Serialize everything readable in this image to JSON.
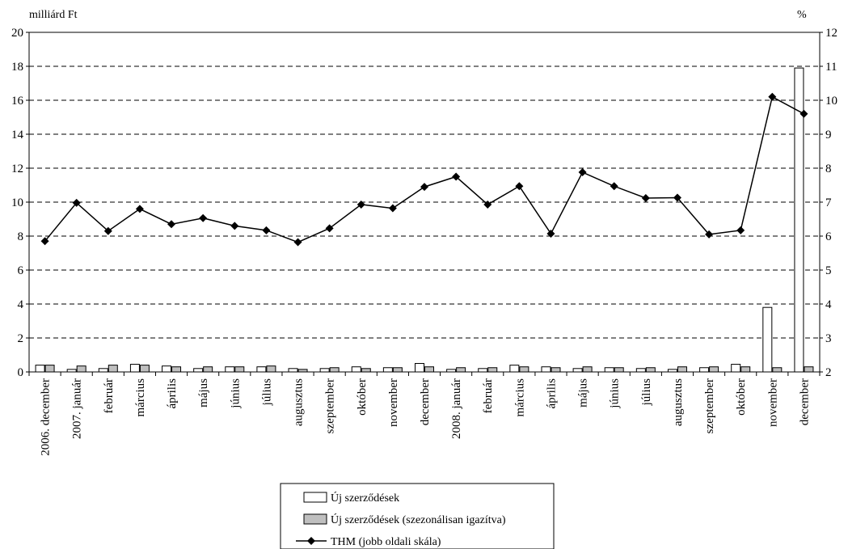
{
  "chart_data": {
    "type": "bar",
    "y_left_label": "milliárd Ft",
    "y_right_label": "%",
    "y_left_range": [
      0,
      20
    ],
    "y_left_ticks": [
      "0",
      "2",
      "4",
      "6",
      "8",
      "10",
      "12",
      "14",
      "16",
      "18",
      "20"
    ],
    "y_right_range": [
      2,
      12
    ],
    "y_right_ticks": [
      "2",
      "3",
      "4",
      "5",
      "6",
      "7",
      "8",
      "9",
      "10",
      "11",
      "12"
    ],
    "grid": "horizontal dashed",
    "legend_position": "bottom",
    "categories": [
      "2006. december",
      "2007. január",
      "február",
      "március",
      "április",
      "május",
      "június",
      "július",
      "augusztus",
      "szeptember",
      "október",
      "november",
      "december",
      "2008. január",
      "február",
      "március",
      "április",
      "május",
      "június",
      "július",
      "augusztus",
      "szeptember",
      "október",
      "november",
      "december"
    ],
    "series": [
      {
        "name": "Új szerződések",
        "type": "bar",
        "axis": "left",
        "color": "#ffffff",
        "values": [
          0.4,
          0.15,
          0.2,
          0.45,
          0.35,
          0.2,
          0.3,
          0.3,
          0.2,
          0.2,
          0.3,
          0.25,
          0.5,
          0.15,
          0.2,
          0.4,
          0.3,
          0.2,
          0.25,
          0.2,
          0.15,
          0.25,
          0.45,
          3.8,
          17.9
        ]
      },
      {
        "name": "Új szerződések (szezonálisan igazítva)",
        "type": "bar",
        "axis": "left",
        "color": "#bfbfbf",
        "values": [
          0.4,
          0.35,
          0.4,
          0.4,
          0.3,
          0.3,
          0.3,
          0.35,
          0.15,
          0.25,
          0.2,
          0.25,
          0.3,
          0.25,
          0.25,
          0.3,
          0.25,
          0.3,
          0.25,
          0.25,
          0.3,
          0.3,
          0.3,
          0.25,
          0.3
        ]
      },
      {
        "name": "THM (jobb oldali skála)",
        "type": "line",
        "axis": "right",
        "color": "#000000",
        "marker": "diamond",
        "values": [
          5.85,
          6.98,
          6.15,
          6.8,
          6.35,
          6.53,
          6.3,
          6.17,
          5.82,
          6.23,
          6.93,
          6.82,
          7.45,
          7.75,
          6.93,
          7.47,
          6.07,
          7.88,
          7.47,
          7.12,
          7.13,
          6.05,
          6.17,
          10.1,
          9.6
        ]
      }
    ]
  }
}
